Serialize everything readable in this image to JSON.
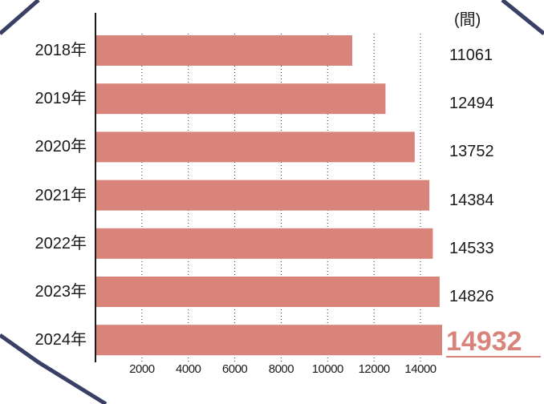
{
  "colors": {
    "bar": "#d9847a",
    "frame": "#3a3f66",
    "highlight": "#d9847a",
    "grid": "#333333"
  },
  "chart_data": {
    "type": "bar",
    "orientation": "horizontal",
    "unit": "(間)",
    "categories": [
      "2018年",
      "2019年",
      "2020年",
      "2021年",
      "2022年",
      "2023年",
      "2024年"
    ],
    "values": [
      11061,
      12494,
      13752,
      14384,
      14533,
      14826,
      14932
    ],
    "value_labels": [
      "11061",
      "12494",
      "13752",
      "14384",
      "14533",
      "14826",
      "14932"
    ],
    "highlighted_index": 6,
    "xticks": [
      "2000",
      "4000",
      "6000",
      "8000",
      "10000",
      "12000",
      "14000"
    ],
    "xtick_values": [
      2000,
      4000,
      6000,
      8000,
      10000,
      12000,
      14000
    ],
    "xlim": [
      0,
      14932
    ],
    "grid": "vertical dotted",
    "title": "",
    "xlabel": "",
    "ylabel": ""
  }
}
